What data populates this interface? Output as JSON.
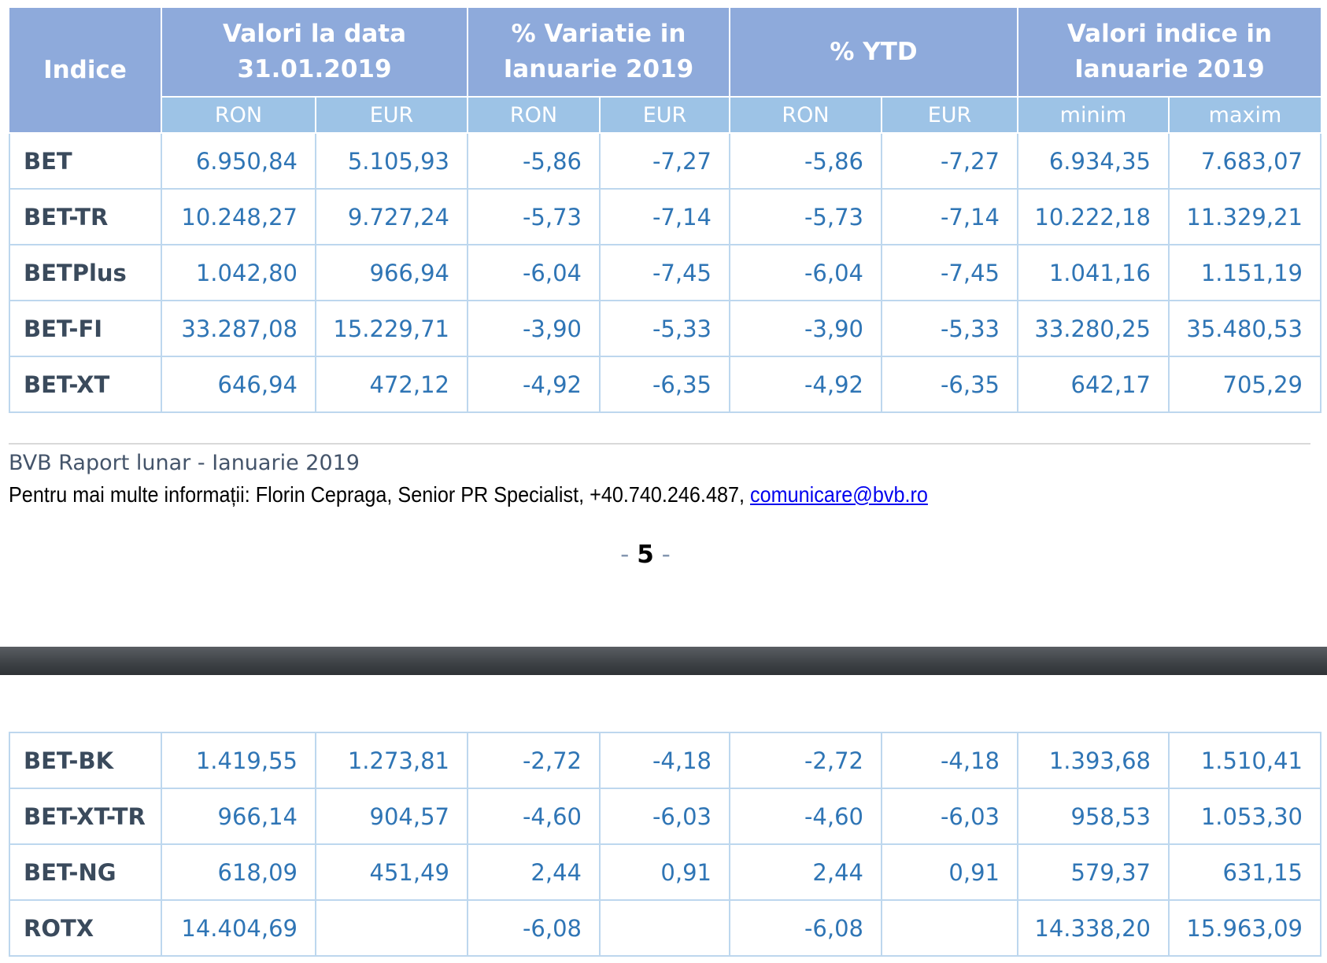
{
  "table": {
    "header": {
      "indice": "Indice",
      "groups": [
        "Valori la data\n31.01.2019",
        "% Variatie in\nIanuarie 2019",
        "% YTD",
        "Valori indice in\nIanuarie 2019"
      ],
      "sub": [
        "RON",
        "EUR",
        "RON",
        "EUR",
        "RON",
        "EUR",
        "minim",
        "maxim"
      ]
    },
    "rows_page5": [
      {
        "name": "BET",
        "v": [
          "6.950,84",
          "5.105,93",
          "-5,86",
          "-7,27",
          "-5,86",
          "-7,27",
          "6.934,35",
          "7.683,07"
        ]
      },
      {
        "name": "BET-TR",
        "v": [
          "10.248,27",
          "9.727,24",
          "-5,73",
          "-7,14",
          "-5,73",
          "-7,14",
          "10.222,18",
          "11.329,21"
        ]
      },
      {
        "name": "BETPlus",
        "v": [
          "1.042,80",
          "966,94",
          "-6,04",
          "-7,45",
          "-6,04",
          "-7,45",
          "1.041,16",
          "1.151,19"
        ]
      },
      {
        "name": "BET-FI",
        "v": [
          "33.287,08",
          "15.229,71",
          "-3,90",
          "-5,33",
          "-3,90",
          "-5,33",
          "33.280,25",
          "35.480,53"
        ]
      },
      {
        "name": "BET-XT",
        "v": [
          "646,94",
          "472,12",
          "-4,92",
          "-6,35",
          "-4,92",
          "-6,35",
          "642,17",
          "705,29"
        ]
      }
    ],
    "rows_page6": [
      {
        "name": "BET-BK",
        "v": [
          "1.419,55",
          "1.273,81",
          "-2,72",
          "-4,18",
          "-2,72",
          "-4,18",
          "1.393,68",
          "1.510,41"
        ]
      },
      {
        "name": "BET-XT-TR",
        "v": [
          "966,14",
          "904,57",
          "-4,60",
          "-6,03",
          "-4,60",
          "-6,03",
          "958,53",
          "1.053,30"
        ]
      },
      {
        "name": "BET-NG",
        "v": [
          "618,09",
          "451,49",
          "2,44",
          "0,91",
          "2,44",
          "0,91",
          "579,37",
          "631,15"
        ]
      },
      {
        "name": "ROTX",
        "v": [
          "14.404,69",
          "",
          "-6,08",
          "",
          "-6,08",
          "",
          "14.338,20",
          "15.963,09"
        ]
      }
    ]
  },
  "footer": {
    "report_title": "BVB Raport lunar - Ianuarie 2019",
    "contact_prefix": "Pentru mai multe informații: Florin Cepraga, Senior PR Specialist, +40.740.246.487, ",
    "contact_email": "comunicare@bvb.ro",
    "page_dash": "-",
    "page_number": "5"
  },
  "colors": {
    "header_dark": "#8eaadb",
    "header_light": "#9dc3e6",
    "grid": "#bdd7ee",
    "value_text": "#2f75b5",
    "name_text": "#3a4a5c"
  }
}
